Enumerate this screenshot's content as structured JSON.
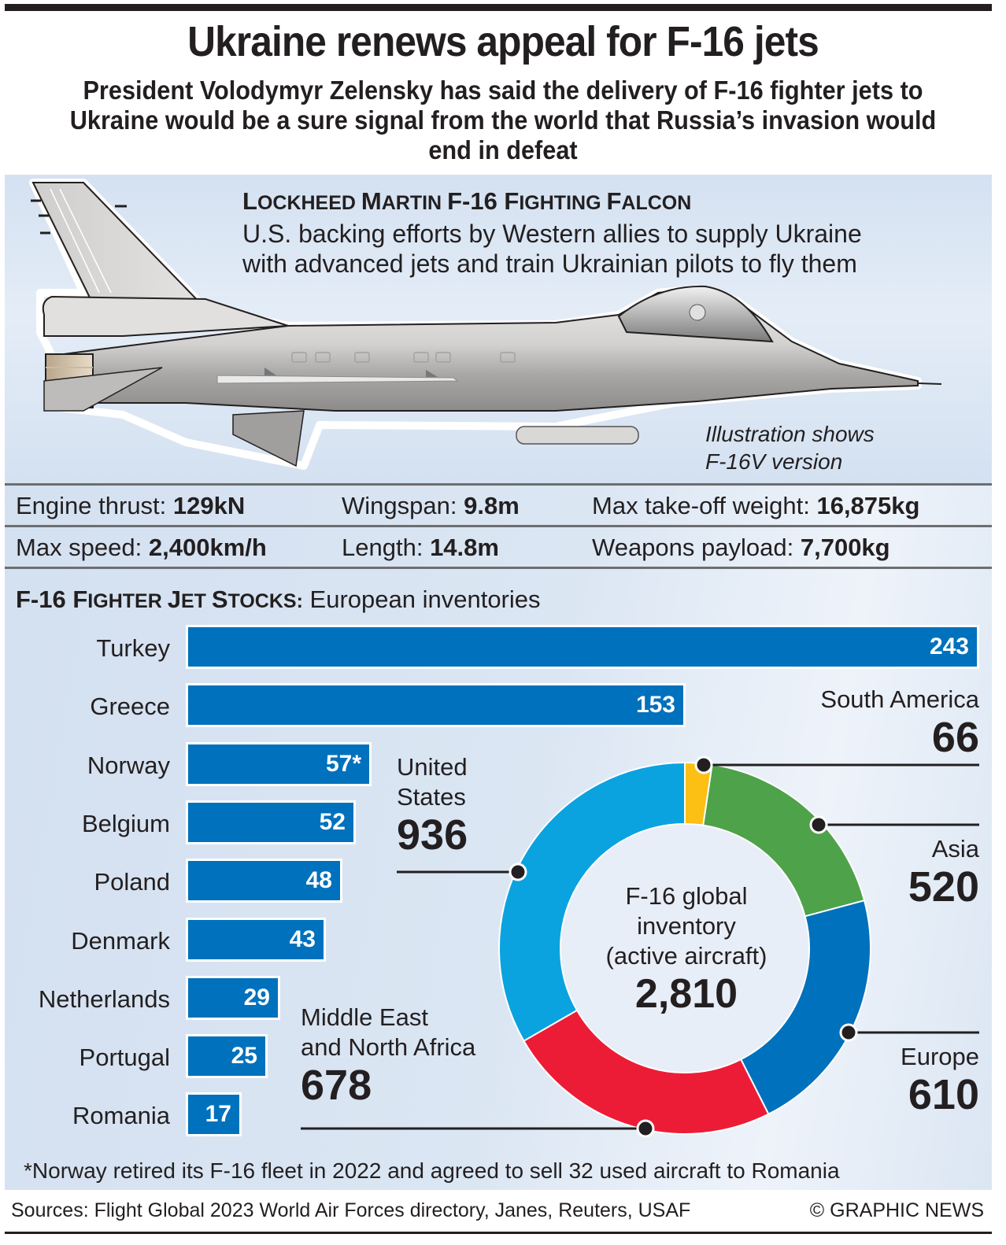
{
  "header": {
    "title": "Ukraine renews appeal for F-16 jets",
    "subtitle": "President Volodymyr Zelensky has said the delivery of F-16 fighter jets to Ukraine would be a sure signal from the world that Russia’s invasion would end in defeat"
  },
  "jet": {
    "heading_parts": [
      {
        "cap": "L",
        "rest": "OCKHEED "
      },
      {
        "cap": "M",
        "rest": "ARTIN "
      },
      {
        "cap": "F-16 ",
        "rest": ""
      },
      {
        "cap": "F",
        "rest": "IGHTING "
      },
      {
        "cap": "F",
        "rest": "ALCON"
      }
    ],
    "heading": "LOCKHEED MARTIN F-16 FIGHTING FALCON",
    "description_line1": "U.S. backing efforts by Western allies to supply Ukraine",
    "description_line2": "with advanced jets and train Ukrainian pilots to fly them",
    "note_line1": "Illustration shows",
    "note_line2": "F-16V version"
  },
  "specs": {
    "row1": [
      {
        "label": "Engine thrust:",
        "value": "129kN"
      },
      {
        "label": "Wingspan:",
        "value": "9.8m"
      },
      {
        "label": "Max take-off weight:",
        "value": "16,875kg"
      }
    ],
    "row2": [
      {
        "label": "Max speed:",
        "value": "2,400km/h"
      },
      {
        "label": "Length:",
        "value": "14.8m"
      },
      {
        "label": "Weapons payload:",
        "value": "7,700kg"
      }
    ]
  },
  "stocks": {
    "heading_bold_parts": [
      "F-16 F",
      "IGHTER ",
      "J",
      "ET ",
      "S",
      "TOCKS:"
    ],
    "heading_bold": "F-16 FIGHTER JET STOCKS:",
    "heading_rest": " European inventories"
  },
  "donut": {
    "center_line1": "F-16 global",
    "center_line2": "inventory",
    "center_line3": "(active aircraft)",
    "center_total": "2,810"
  },
  "footnote": "*Norway retired its F-16 fleet in 2022 and agreed to sell 32 used aircraft to Romania",
  "footer": {
    "sources": "Sources: Flight Global 2023 World Air Forces directory, Janes, Reuters, USAF",
    "copyright": "© GRAPHIC NEWS"
  },
  "colors": {
    "bar": "#0071bc",
    "panel_bg": "#d3e0f0",
    "south_america": "#fcbf14",
    "asia": "#4ea24a",
    "europe": "#0071bc",
    "mena": "#ed1c36",
    "united_states": "#0aa3df"
  },
  "chart_data": [
    {
      "type": "bar",
      "orientation": "horizontal",
      "title": "F-16 FIGHTER JET STOCKS: European inventories",
      "categories": [
        "Turkey",
        "Greece",
        "Norway",
        "Belgium",
        "Poland",
        "Denmark",
        "Netherlands",
        "Portugal",
        "Romania"
      ],
      "values": [
        243,
        153,
        57,
        52,
        48,
        43,
        29,
        25,
        17
      ],
      "value_labels": [
        "243",
        "153",
        "57*",
        "52",
        "48",
        "43",
        "29",
        "25",
        "17"
      ],
      "xlabel": "",
      "ylabel": "",
      "grid": false,
      "xlim": [
        0,
        243
      ],
      "annotations": [
        "*Norway retired its F-16 fleet in 2022 and agreed to sell 32 used aircraft to Romania"
      ]
    },
    {
      "type": "pie",
      "variant": "donut",
      "title": "F-16 global inventory (active aircraft)",
      "total": 2810,
      "total_label": "2,810",
      "categories": [
        "South America",
        "Asia",
        "Europe",
        "Middle East and North Africa",
        "United States"
      ],
      "labels": [
        {
          "line1": "South America",
          "line2": ""
        },
        {
          "line1": "Asia",
          "line2": ""
        },
        {
          "line1": "Europe",
          "line2": ""
        },
        {
          "line1": "Middle East",
          "line2": "and North Africa"
        },
        {
          "line1": "United",
          "line2": "States"
        }
      ],
      "values": [
        66,
        520,
        610,
        678,
        936
      ],
      "value_labels": [
        "66",
        "520",
        "610",
        "678",
        "936"
      ],
      "colors": [
        "#fcbf14",
        "#4ea24a",
        "#0071bc",
        "#ed1c36",
        "#0aa3df"
      ],
      "start_angle": "12 o'clock, clockwise",
      "legend": "callout labels"
    }
  ]
}
